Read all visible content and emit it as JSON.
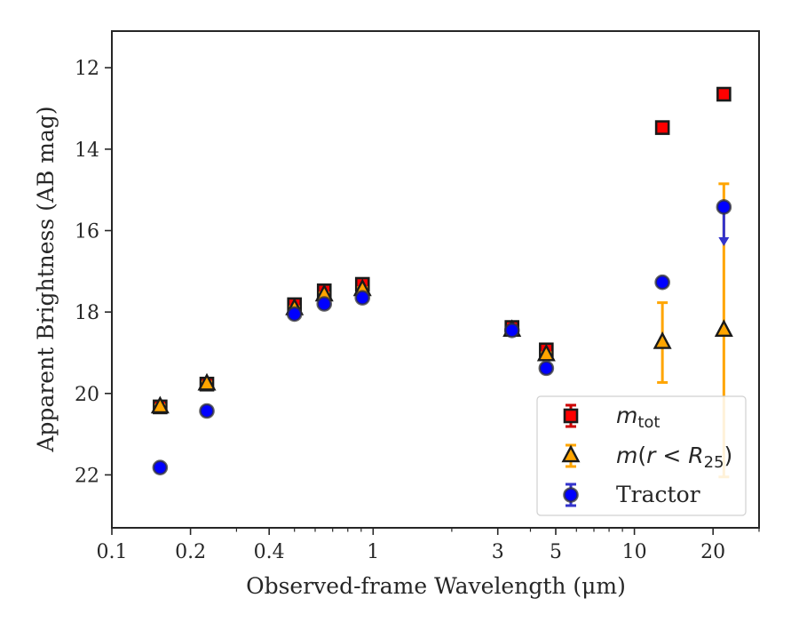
{
  "chart_data": {
    "type": "scatter",
    "xlabel": "Observed-frame Wavelength (μm)",
    "ylabel": "Apparent Brightness (AB mag)",
    "xscale": "log",
    "xlim": [
      0.1,
      30
    ],
    "ylim": [
      23.3,
      11.1
    ],
    "y_inverted": true,
    "xticks": [
      {
        "value": 0.1,
        "label": "0.1"
      },
      {
        "value": 0.2,
        "label": "0.2"
      },
      {
        "value": 0.4,
        "label": "0.4"
      },
      {
        "value": 1,
        "label": "1"
      },
      {
        "value": 3,
        "label": "3"
      },
      {
        "value": 5,
        "label": "5"
      },
      {
        "value": 10,
        "label": "10"
      },
      {
        "value": 20,
        "label": "20"
      }
    ],
    "yticks": [
      {
        "value": 12,
        "label": "12"
      },
      {
        "value": 14,
        "label": "14"
      },
      {
        "value": 16,
        "label": "16"
      },
      {
        "value": 18,
        "label": "18"
      },
      {
        "value": 20,
        "label": "20"
      },
      {
        "value": 22,
        "label": "22"
      }
    ],
    "legend_position": "bottom-right",
    "series": [
      {
        "name_base": "m",
        "name_sub": "tot",
        "marker": "square",
        "color": "#ff0000",
        "errcolor": "#cc0000",
        "points": [
          {
            "x": 0.153,
            "y": 20.33,
            "err": 0.08
          },
          {
            "x": 0.231,
            "y": 19.77,
            "err": 0.08
          },
          {
            "x": 0.5,
            "y": 17.82,
            "err": 0.05
          },
          {
            "x": 0.65,
            "y": 17.48,
            "err": 0.05
          },
          {
            "x": 0.91,
            "y": 17.32,
            "err": 0.05
          },
          {
            "x": 3.4,
            "y": 18.38,
            "err": 0.05
          },
          {
            "x": 4.6,
            "y": 18.93,
            "err": 0.05
          },
          {
            "x": 12.8,
            "y": 13.47,
            "err": 0.04
          },
          {
            "x": 22.0,
            "y": 12.65,
            "err": 0.04
          }
        ]
      },
      {
        "name_base": "m(r < R",
        "name_sub": "25",
        "name_tail": ")",
        "marker": "triangle",
        "color": "#ffa500",
        "errcolor": "#ffa500",
        "points": [
          {
            "x": 0.153,
            "y": 20.33,
            "err": 0.05
          },
          {
            "x": 0.231,
            "y": 19.77,
            "err": 0.05
          },
          {
            "x": 0.5,
            "y": 17.92,
            "err": 0.05
          },
          {
            "x": 0.65,
            "y": 17.58,
            "err": 0.05
          },
          {
            "x": 0.91,
            "y": 17.45,
            "err": 0.05
          },
          {
            "x": 3.4,
            "y": 18.45,
            "err": 0.05
          },
          {
            "x": 4.6,
            "y": 19.05,
            "err": 0.05
          },
          {
            "x": 12.8,
            "y": 18.75,
            "err": 0.98
          },
          {
            "x": 22.0,
            "y": 18.45,
            "err_low": 3.6,
            "err_high": 3.6
          }
        ]
      },
      {
        "name": "Tractor",
        "marker": "circle",
        "color": "#0000ff",
        "errcolor": "#3333cc",
        "points": [
          {
            "x": 0.153,
            "y": 21.82,
            "err": 0.05
          },
          {
            "x": 0.231,
            "y": 20.43,
            "err": 0.05
          },
          {
            "x": 0.5,
            "y": 18.05,
            "err": 0.05
          },
          {
            "x": 0.65,
            "y": 17.8,
            "err": 0.05
          },
          {
            "x": 0.91,
            "y": 17.65,
            "err": 0.05
          },
          {
            "x": 3.4,
            "y": 18.45,
            "err": 0.05
          },
          {
            "x": 4.6,
            "y": 19.38,
            "err": 0.05
          },
          {
            "x": 12.8,
            "y": 17.27,
            "err": 0.05
          },
          {
            "x": 22.0,
            "y": 15.42,
            "upper_limit_to": 16.25
          }
        ]
      }
    ]
  }
}
